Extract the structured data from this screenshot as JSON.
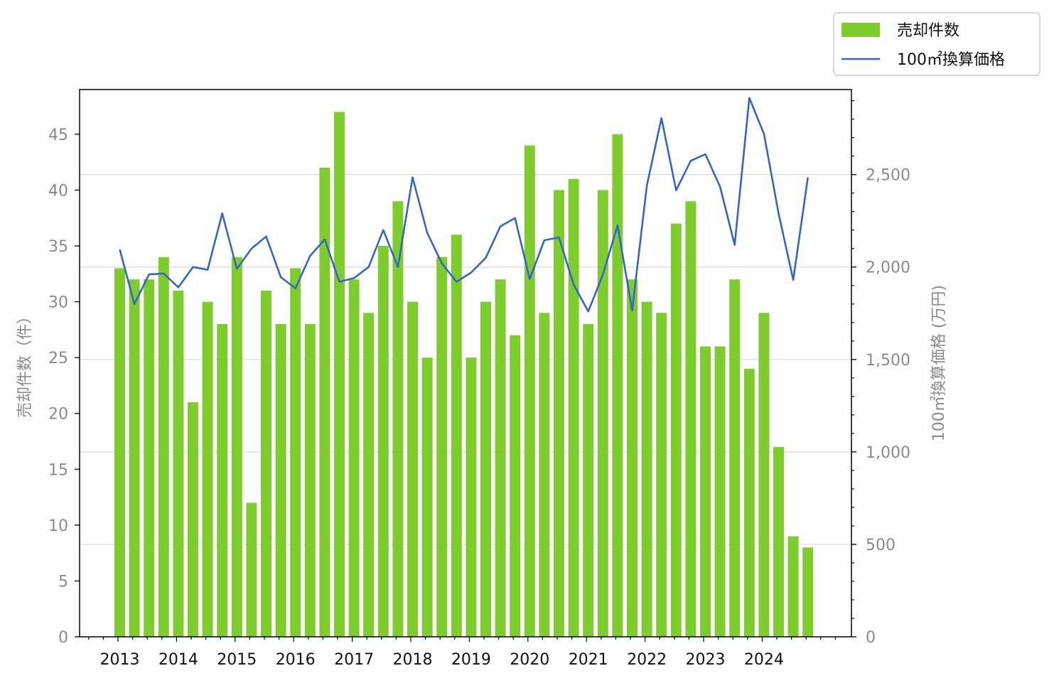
{
  "chart_data": {
    "type": "bar+line",
    "x_tick_labels": [
      "2013",
      "2014",
      "2015",
      "2016",
      "2017",
      "2018",
      "2019",
      "2020",
      "2021",
      "2022",
      "2023",
      "2024"
    ],
    "left_axis": {
      "label": "売却件数（件）",
      "ylim": [
        0,
        49
      ],
      "ticks": [
        0,
        5,
        10,
        15,
        20,
        25,
        30,
        35,
        40,
        45
      ]
    },
    "right_axis": {
      "label": "100㎡換算価格 (万円)",
      "ylim": [
        0,
        2960
      ],
      "ticks": [
        0,
        500,
        1000,
        1500,
        2000,
        2500
      ],
      "tick_labels": [
        "0",
        "500",
        "1,000",
        "1,500",
        "2,000",
        "2,500"
      ]
    },
    "grid": "horizontal at right-axis major ticks",
    "legend": {
      "placement": "top-right outside",
      "entries": [
        "売却件数",
        "100㎡換算価格"
      ]
    },
    "colors": {
      "bar": "#7fcc2e",
      "line": "#3565c6"
    },
    "series": [
      {
        "name": "売却件数",
        "type": "bar",
        "axis": "left",
        "values": [
          33,
          32,
          32,
          34,
          31,
          21,
          30,
          28,
          34,
          12,
          31,
          28,
          33,
          28,
          42,
          47,
          32,
          29,
          35,
          39,
          30,
          25,
          34,
          36,
          25,
          30,
          32,
          27,
          44,
          29,
          40,
          41,
          28,
          40,
          45,
          32,
          30,
          29,
          37,
          39,
          26,
          26,
          32,
          24,
          29,
          17,
          9,
          8
        ]
      },
      {
        "name": "100㎡換算価格",
        "type": "line",
        "axis": "right",
        "values": [
          2095,
          1800,
          1960,
          1965,
          1890,
          2000,
          1985,
          2290,
          1990,
          2100,
          2165,
          1945,
          1885,
          2060,
          2150,
          1920,
          1940,
          2000,
          2200,
          2000,
          2485,
          2185,
          2020,
          1920,
          1970,
          2050,
          2220,
          2265,
          1935,
          2145,
          2160,
          1905,
          1760,
          1960,
          2225,
          1765,
          2440,
          2805,
          2415,
          2575,
          2610,
          2435,
          2120,
          2915,
          2720,
          2290,
          1930,
          2485
        ]
      }
    ]
  }
}
